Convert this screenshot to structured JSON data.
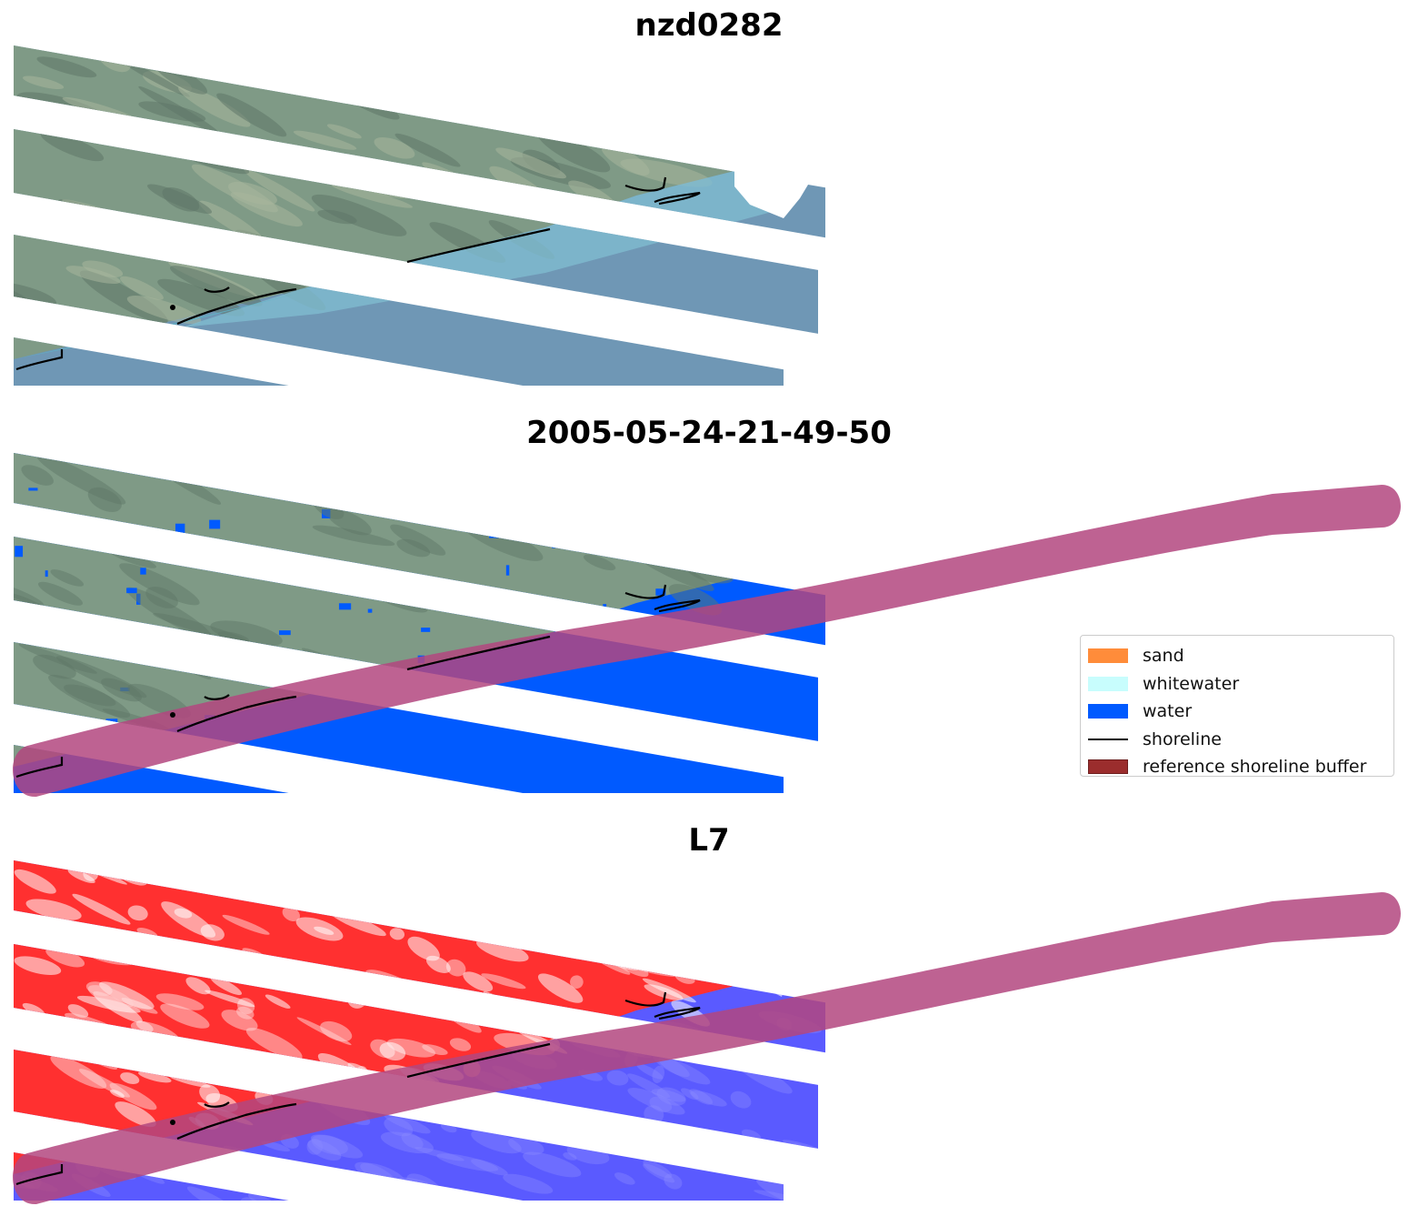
{
  "panels": [
    {
      "title": "nzd0282",
      "kind": "rgb"
    },
    {
      "title": "2005-05-24-21-49-50",
      "kind": "classified"
    },
    {
      "title": "L7",
      "kind": "index"
    }
  ],
  "legend": {
    "items": [
      {
        "label": "sand",
        "color": "#ff8c3a",
        "shape": "patch"
      },
      {
        "label": "whitewater",
        "color": "#c8fdfd",
        "shape": "patch"
      },
      {
        "label": "water",
        "color": "#005aff",
        "shape": "patch"
      },
      {
        "label": "shoreline",
        "color": "#000000",
        "shape": "line"
      },
      {
        "label": "reference shoreline buffer",
        "color": "#9b2d2d",
        "shape": "patch"
      }
    ]
  },
  "colors": {
    "land_green": "#7f9a86",
    "land_dark": "#5f7767",
    "shallow_water": "#7fbccf",
    "deep_water": "#6f97b5",
    "class_water": "#005aff",
    "buffer": "#b3477f",
    "index_red": "#ff3030",
    "index_blue": "#5a5aff",
    "shoreline": "#000000"
  }
}
